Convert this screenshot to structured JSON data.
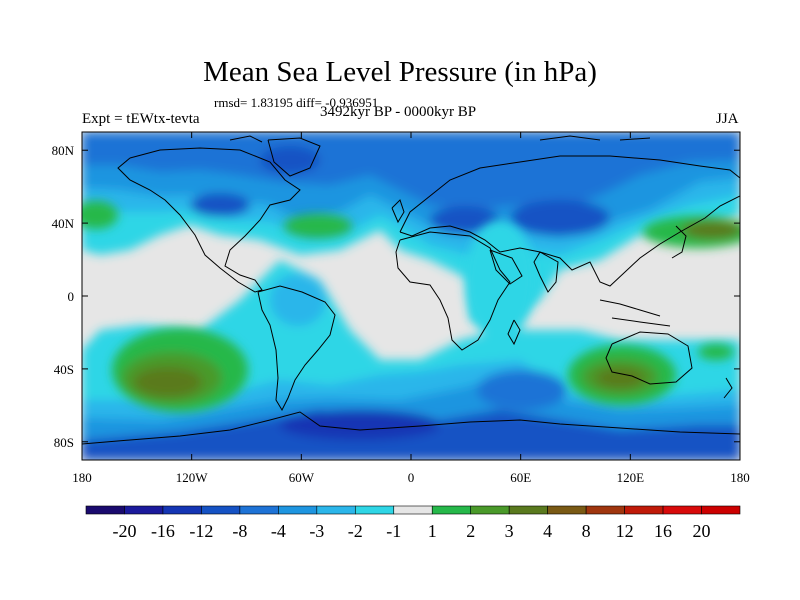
{
  "chart_data": {
    "type": "heatmap",
    "title": "Mean Sea Level Pressure (in hPa)",
    "stats_line": "rmsd= 1.83195 diff= -0.936951",
    "experiment": "Expt = tEWtx-tevta",
    "period": "3492kyr BP - 0000kyr BP",
    "season": "JJA",
    "x_range": [
      -180,
      180
    ],
    "y_range": [
      -90,
      90
    ],
    "x_ticks": [
      {
        "value": -180,
        "label": "180"
      },
      {
        "value": -120,
        "label": "120W"
      },
      {
        "value": -60,
        "label": "60W"
      },
      {
        "value": 0,
        "label": "0"
      },
      {
        "value": 60,
        "label": "60E"
      },
      {
        "value": 120,
        "label": "120E"
      },
      {
        "value": 180,
        "label": "180"
      }
    ],
    "y_ticks": [
      {
        "value": 80,
        "label": "80N"
      },
      {
        "value": 40,
        "label": "40N"
      },
      {
        "value": 0,
        "label": "0"
      },
      {
        "value": -40,
        "label": "40S"
      },
      {
        "value": -80,
        "label": "80S"
      }
    ],
    "colorbar": {
      "levels": [
        "-20",
        "-16",
        "-12",
        "-8",
        "-4",
        "-3",
        "-2",
        "-1",
        "1",
        "2",
        "3",
        "4",
        "8",
        "12",
        "16",
        "20"
      ],
      "colors": [
        "#1a0a6e",
        "#1b1a9c",
        "#1435b4",
        "#1552c4",
        "#1e73d6",
        "#1e95e0",
        "#2bb6ea",
        "#2fd6e6",
        "#e6e6e6",
        "#26b84a",
        "#4a9a2a",
        "#5a7a1e",
        "#7a5a14",
        "#a0360e",
        "#c01a08",
        "#d80a0a",
        "#cc0000"
      ]
    },
    "fields": [
      {
        "name": "land-sea-base",
        "value_class": "-1 to 1"
      },
      {
        "name": "northern-band",
        "value_class": "-4 to -2"
      },
      {
        "name": "southern-ocean-band",
        "value_class": "-4 to -1"
      },
      {
        "name": "antarctic-margin",
        "value_class": "-8 to -4"
      },
      {
        "name": "south-pacific-high",
        "value_class": "2 to 4"
      },
      {
        "name": "south-indian-high",
        "value_class": "2 to 4"
      },
      {
        "name": "north-pacific-high",
        "value_class": "2 to 4"
      },
      {
        "name": "north-atlantic-high",
        "value_class": "1 to 2"
      }
    ]
  }
}
